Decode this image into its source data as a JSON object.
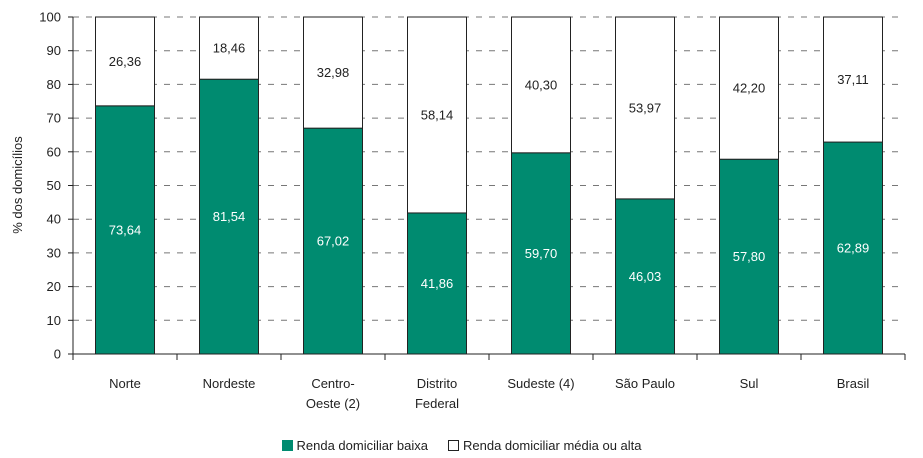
{
  "chart_data": {
    "type": "bar",
    "stacked": true,
    "ylabel": "% dos domicílios",
    "ylim": [
      0,
      100
    ],
    "yticks": [
      0,
      10,
      20,
      30,
      40,
      50,
      60,
      70,
      80,
      90,
      100
    ],
    "grid": true,
    "legend_position": "bottom",
    "categories": [
      [
        "Norte"
      ],
      [
        "Nordeste"
      ],
      [
        "Centro-",
        "Oeste (2)"
      ],
      [
        "Distrito",
        "Federal"
      ],
      [
        "Sudeste (4)"
      ],
      [
        "São Paulo"
      ],
      [
        "Sul"
      ],
      [
        "Brasil"
      ]
    ],
    "series": [
      {
        "name": "Renda domiciliar baixa",
        "color": "#008b70",
        "label_color": "#ffffff",
        "values": [
          73.64,
          81.54,
          67.02,
          41.86,
          59.7,
          46.03,
          57.8,
          62.89
        ],
        "labels": [
          "73,64",
          "81,54",
          "67,02",
          "41,86",
          "59,70",
          "46,03",
          "57,80",
          "62,89"
        ]
      },
      {
        "name": "Renda domiciliar média ou alta",
        "color": "#ffffff",
        "label_color": "#222222",
        "values": [
          26.36,
          18.46,
          32.98,
          58.14,
          40.3,
          53.97,
          42.2,
          37.11
        ],
        "labels": [
          "26,36",
          "18,46",
          "32,98",
          "58,14",
          "40,30",
          "53,97",
          "42,20",
          "37,11"
        ]
      }
    ]
  },
  "legend": {
    "low_label": "Renda domiciliar baixa",
    "high_label": "Renda domiciliar média ou alta"
  }
}
